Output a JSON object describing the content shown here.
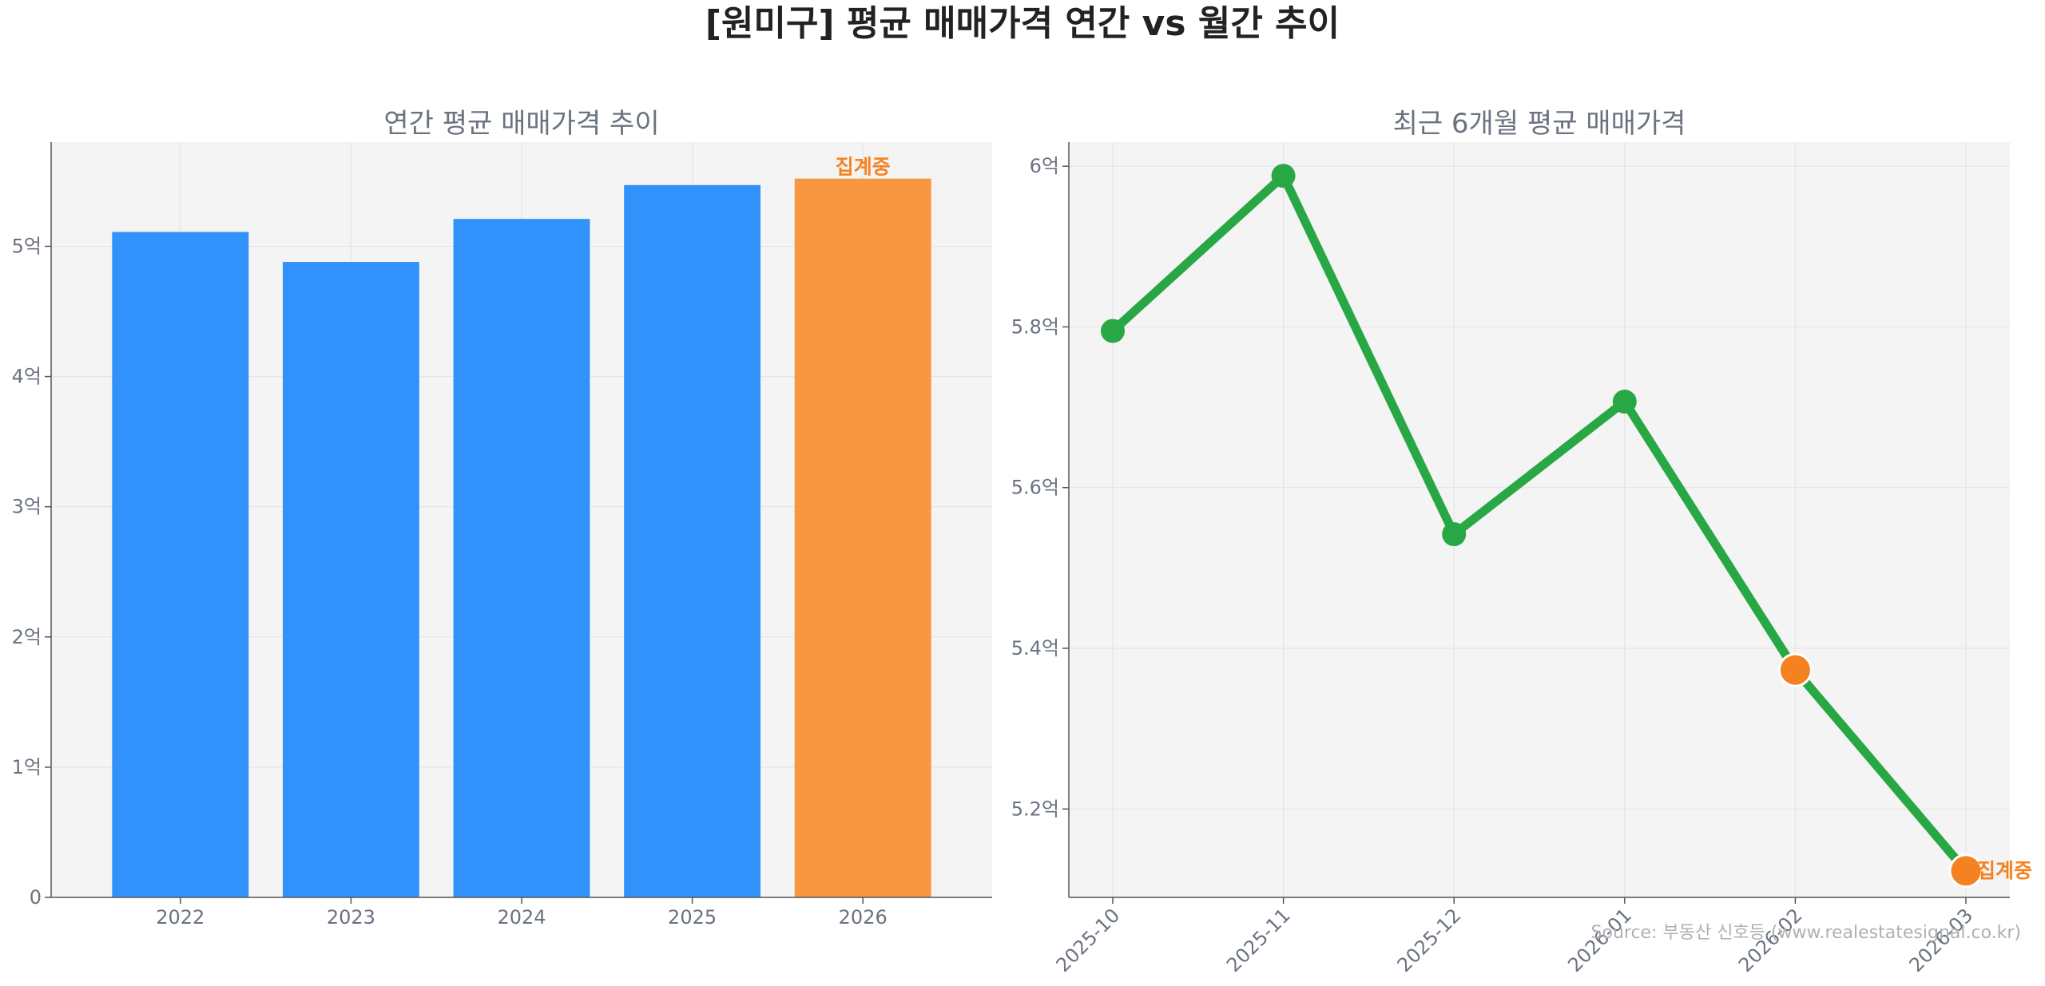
{
  "title": "[원미구] 평균 매매가격 연간 vs 월간 추이",
  "source": "Source: 부동산 신호등 (www.realestatesignal.co.kr)",
  "chart_data": [
    {
      "type": "bar",
      "title": "연간 평균 매매가격 추이",
      "categories": [
        "2022",
        "2023",
        "2024",
        "2025",
        "2026"
      ],
      "values": [
        5.11,
        4.88,
        5.21,
        5.47,
        5.52
      ],
      "unit": "억",
      "ylim": [
        0,
        5.8
      ],
      "yticks": [
        0,
        1,
        2,
        3,
        4,
        5
      ],
      "ytick_labels": [
        "0",
        "1억",
        "2억",
        "3억",
        "4억",
        "5억"
      ],
      "bar_color": "#3192fc",
      "highlight_color": "#f99740",
      "highlight_index": 4,
      "annotation": "집계중",
      "grid": true
    },
    {
      "type": "line",
      "title": "최근 6개월 평균 매매가격",
      "x": [
        "2025-10",
        "2025-11",
        "2025-12",
        "2026-01",
        "2026-02",
        "2026-03"
      ],
      "values": [
        5.795,
        5.988,
        5.542,
        5.707,
        5.373,
        5.123
      ],
      "unit": "억",
      "ylim": [
        5.09,
        6.03
      ],
      "yticks": [
        5.2,
        5.4,
        5.6,
        5.8,
        6.0
      ],
      "ytick_labels": [
        "5.2억",
        "5.4억",
        "5.6억",
        "5.8억",
        "6억"
      ],
      "line_color": "#28a745",
      "highlight_color": "#f58220",
      "highlight_indices": [
        4,
        5
      ],
      "annotation": "집계중",
      "grid": true
    }
  ]
}
